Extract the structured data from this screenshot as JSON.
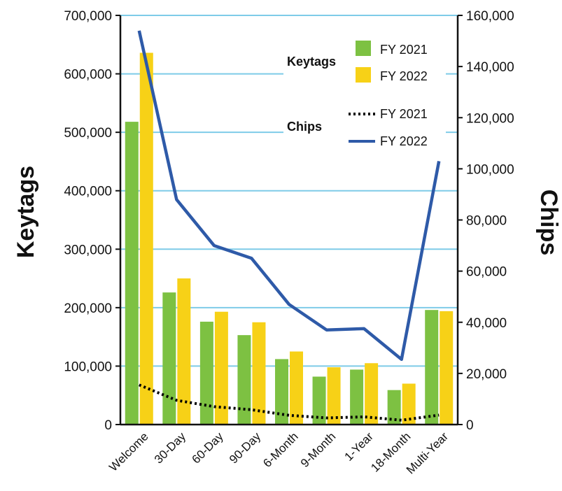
{
  "chart_data": {
    "type": "bar",
    "categories": [
      "Welcome",
      "30-Day",
      "60-Day",
      "90-Day",
      "6-Month",
      "9-Month",
      "1-Year",
      "18-Month",
      "Multi-Year"
    ],
    "left_axis": {
      "label": "Keytags",
      "ylim": [
        0,
        700000
      ],
      "ticks": [
        "0",
        "100,000",
        "200,000",
        "300,000",
        "400,000",
        "500,000",
        "600,000",
        "700,000"
      ]
    },
    "right_axis": {
      "label": "Chips",
      "ylim": [
        0,
        160000
      ],
      "ticks": [
        "0",
        "20,000",
        "40,000",
        "60,000",
        "80,000",
        "100,000",
        "120,000",
        "140,000",
        "160,000"
      ]
    },
    "bar_series": [
      {
        "name": "FY 2021",
        "color": "#7dc142",
        "values": [
          518000,
          226000,
          176000,
          153000,
          112000,
          82000,
          94000,
          59000,
          196000
        ]
      },
      {
        "name": "FY 2022",
        "color": "#f7d117",
        "values": [
          636000,
          250000,
          193000,
          175000,
          125000,
          98000,
          105000,
          70000,
          194000
        ]
      }
    ],
    "line_series": [
      {
        "name": "FY 2021",
        "color": "#000000",
        "style": "dotted",
        "values": [
          15500,
          9500,
          7000,
          5800,
          3600,
          2600,
          3000,
          1700,
          3700
        ]
      },
      {
        "name": "FY 2022",
        "color": "#2e5aa8",
        "style": "solid",
        "values": [
          154000,
          88000,
          70000,
          65000,
          47000,
          37000,
          37500,
          25500,
          103000
        ]
      }
    ],
    "legend": {
      "position": "top-right",
      "keytags_heading": "Keytags",
      "chips_heading": "Chips"
    },
    "grid": true,
    "grid_color": "#7ecbe8"
  }
}
